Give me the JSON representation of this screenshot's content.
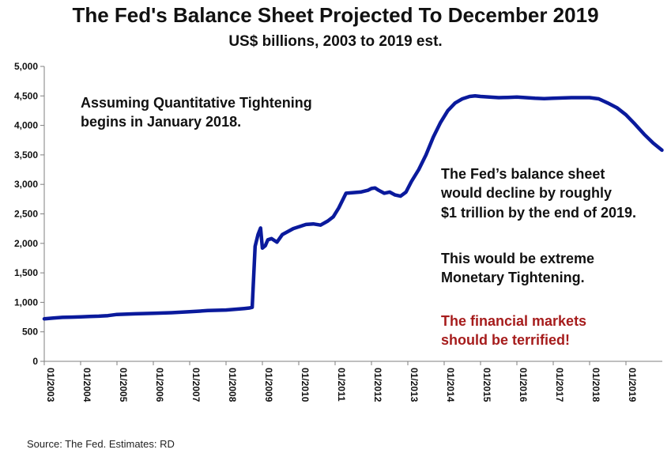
{
  "chart_data": {
    "type": "line",
    "title": "The Fed's Balance Sheet Projected To December 2019",
    "subtitle": "US$ billions, 2003 to 2019 est.",
    "xlabel": "",
    "ylabel": "",
    "xlim": [
      2003.0,
      2020.0
    ],
    "ylim": [
      0,
      5000
    ],
    "y_ticks": [
      0,
      500,
      1000,
      1500,
      2000,
      2500,
      3000,
      3500,
      4000,
      4500,
      5000
    ],
    "y_tick_labels": [
      "0",
      "500",
      "1,000",
      "1,500",
      "2,000",
      "2,500",
      "3,000",
      "3,500",
      "4,000",
      "4,500",
      "5,000"
    ],
    "x_ticks": [
      2003,
      2004,
      2005,
      2006,
      2007,
      2008,
      2009,
      2010,
      2011,
      2012,
      2013,
      2014,
      2015,
      2016,
      2017,
      2018,
      2019
    ],
    "x_tick_labels": [
      "01/2003",
      "01/2004",
      "01/2005",
      "01/2006",
      "01/2007",
      "01/2008",
      "01/2009",
      "01/2010",
      "01/2011",
      "01/2012",
      "01/2013",
      "01/2014",
      "01/2015",
      "01/2016",
      "01/2017",
      "01/2018",
      "01/2019"
    ],
    "grid": false,
    "series": [
      {
        "name": "Fed balance sheet",
        "color": "#0a1a9c",
        "x": [
          2003.0,
          2003.25,
          2003.5,
          2003.75,
          2004.0,
          2004.25,
          2004.5,
          2004.75,
          2005.0,
          2005.5,
          2006.0,
          2006.5,
          2007.0,
          2007.5,
          2008.0,
          2008.3,
          2008.5,
          2008.65,
          2008.72,
          2008.8,
          2008.88,
          2008.95,
          2009.0,
          2009.08,
          2009.15,
          2009.25,
          2009.4,
          2009.55,
          2009.7,
          2009.85,
          2010.0,
          2010.2,
          2010.4,
          2010.6,
          2010.8,
          2010.95,
          2011.1,
          2011.3,
          2011.5,
          2011.7,
          2011.9,
          2012.0,
          2012.1,
          2012.2,
          2012.35,
          2012.5,
          2012.65,
          2012.8,
          2012.95,
          2013.1,
          2013.3,
          2013.5,
          2013.7,
          2013.9,
          2014.1,
          2014.3,
          2014.5,
          2014.7,
          2014.85,
          2015.0,
          2015.25,
          2015.5,
          2015.75,
          2016.0,
          2016.25,
          2016.5,
          2016.75,
          2017.0,
          2017.25,
          2017.5,
          2017.75,
          2018.0,
          2018.25,
          2018.5,
          2018.75,
          2019.0,
          2019.25,
          2019.5,
          2019.75,
          2019.99
        ],
        "values": [
          720,
          735,
          745,
          750,
          755,
          760,
          765,
          775,
          795,
          805,
          815,
          825,
          840,
          860,
          870,
          885,
          895,
          905,
          915,
          1950,
          2150,
          2260,
          1920,
          1960,
          2060,
          2080,
          2020,
          2150,
          2200,
          2250,
          2280,
          2320,
          2330,
          2310,
          2380,
          2450,
          2600,
          2850,
          2860,
          2870,
          2900,
          2930,
          2940,
          2900,
          2850,
          2870,
          2820,
          2800,
          2870,
          3050,
          3250,
          3500,
          3800,
          4050,
          4250,
          4380,
          4450,
          4490,
          4500,
          4490,
          4480,
          4470,
          4475,
          4480,
          4470,
          4460,
          4455,
          4460,
          4465,
          4470,
          4470,
          4470,
          4450,
          4380,
          4300,
          4180,
          4020,
          3850,
          3700,
          3580
        ]
      }
    ],
    "annotations": [
      {
        "lines": [
          "Assuming Quantitative Tightening",
          "begins in January 2018."
        ],
        "color": "#111111"
      },
      {
        "lines": [
          "The Fed’s balance sheet",
          "would decline by roughly",
          "$1 trillion by the end of 2019."
        ],
        "color": "#111111"
      },
      {
        "lines": [
          "This would be extreme",
          "Monetary Tightening."
        ],
        "color": "#111111"
      },
      {
        "lines": [
          "The financial markets",
          "should be terrified!"
        ],
        "color": "#a61c1c"
      }
    ],
    "source": "Source: The Fed.  Estimates: RD"
  }
}
